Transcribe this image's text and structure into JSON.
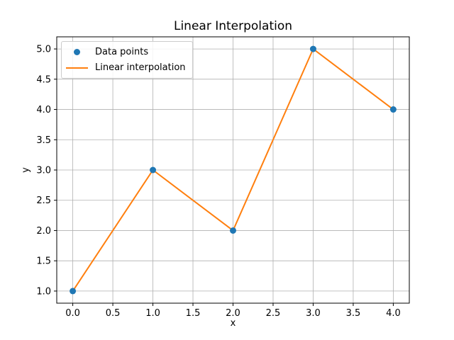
{
  "figure": {
    "title": "Linear Interpolation",
    "xlabel": "x",
    "ylabel": "y"
  },
  "legend": {
    "position": "upper left",
    "items": [
      {
        "label": "Data points",
        "marker": "dot",
        "color": "#1f77b4"
      },
      {
        "label": "Linear interpolation",
        "marker": "line",
        "color": "#ff7f0e"
      }
    ]
  },
  "chart_data": {
    "type": "line",
    "title": "Linear Interpolation",
    "xlabel": "x",
    "ylabel": "y",
    "x": [
      0,
      1,
      2,
      3,
      4
    ],
    "series": [
      {
        "name": "Data points",
        "type": "scatter",
        "color": "#1f77b4",
        "x": [
          0,
          1,
          2,
          3,
          4
        ],
        "y": [
          1,
          3,
          2,
          5,
          4
        ]
      },
      {
        "name": "Linear interpolation",
        "type": "line",
        "color": "#ff7f0e",
        "x": [
          0,
          1,
          2,
          3,
          4
        ],
        "y": [
          1,
          3,
          2,
          5,
          4
        ]
      }
    ],
    "xlim": [
      -0.2,
      4.2
    ],
    "ylim": [
      0.8,
      5.2
    ],
    "xticks": [
      0.0,
      0.5,
      1.0,
      1.5,
      2.0,
      2.5,
      3.0,
      3.5,
      4.0
    ],
    "yticks": [
      1.0,
      1.5,
      2.0,
      2.5,
      3.0,
      3.5,
      4.0,
      4.5,
      5.0
    ],
    "tick_format_decimals": 1,
    "grid": true,
    "legend_position": "upper left",
    "colors": {
      "grid": "#b0b0b0",
      "spine": "#000000",
      "tick": "#000000",
      "background": "#ffffff"
    }
  }
}
